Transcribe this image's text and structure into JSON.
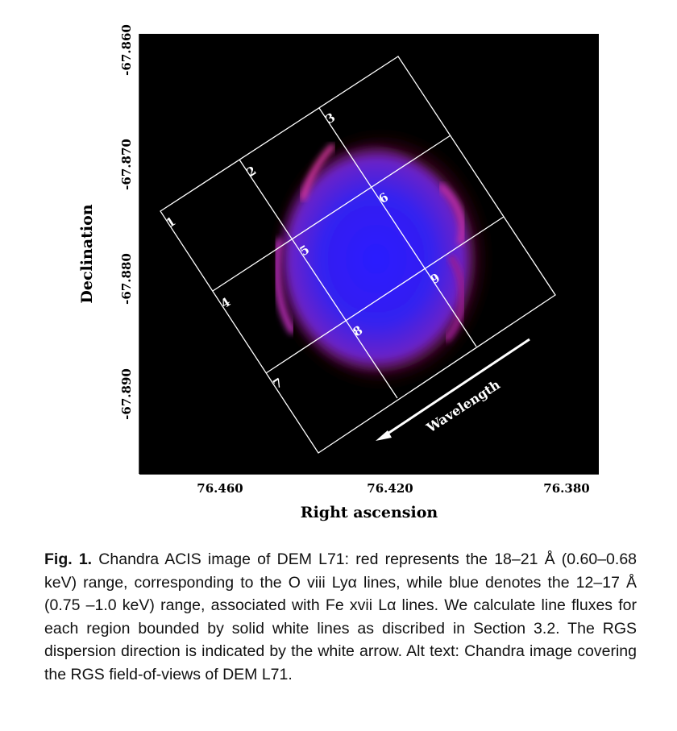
{
  "figure": {
    "xlabel": "Right ascension",
    "ylabel": "Declination",
    "x_ticks": [
      "76.460",
      "76.420",
      "76.380"
    ],
    "y_ticks": [
      "-67.860",
      "-67.870",
      "-67.880",
      "-67.890"
    ],
    "regions": [
      "1",
      "2",
      "3",
      "4",
      "5",
      "6",
      "7",
      "8",
      "9"
    ],
    "arrow_label": "Wavelength",
    "colors": {
      "background": "#000000",
      "soft_band_red": "#e0208a",
      "hard_band_blue": "#2a20ff",
      "grid_lines": "#ffffff"
    }
  },
  "caption": {
    "label": "Fig. 1.",
    "text": "Chandra ACIS image of DEM L71: red represents the 18–21 Å (0.60–0.68 keV) range, corresponding to the O viii Lyα lines, while blue denotes the 12–17 Å (0.75 –1.0 keV) range, associated with Fe xvii Lα lines. We calculate line fluxes for each region bounded by solid white lines as discribed in Section 3.2. The RGS dispersion direction is indicated by the white arrow. Alt text: Chandra image covering the RGS field-of-views of DEM L71."
  }
}
